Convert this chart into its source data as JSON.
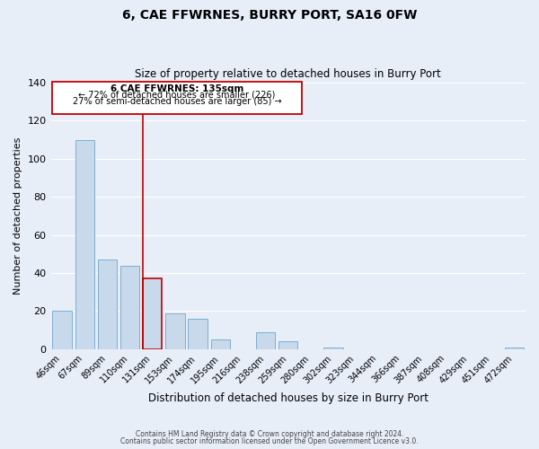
{
  "title": "6, CAE FFWRNES, BURRY PORT, SA16 0FW",
  "subtitle": "Size of property relative to detached houses in Burry Port",
  "xlabel": "Distribution of detached houses by size in Burry Port",
  "ylabel": "Number of detached properties",
  "bar_labels": [
    "46sqm",
    "67sqm",
    "89sqm",
    "110sqm",
    "131sqm",
    "153sqm",
    "174sqm",
    "195sqm",
    "216sqm",
    "238sqm",
    "259sqm",
    "280sqm",
    "302sqm",
    "323sqm",
    "344sqm",
    "366sqm",
    "387sqm",
    "408sqm",
    "429sqm",
    "451sqm",
    "472sqm"
  ],
  "bar_values": [
    20,
    110,
    47,
    44,
    37,
    19,
    16,
    5,
    0,
    9,
    4,
    0,
    1,
    0,
    0,
    0,
    0,
    0,
    0,
    0,
    1
  ],
  "bar_color": "#c9d9ec",
  "bar_edge_color": "#7bafd4",
  "highlight_bar_index": 4,
  "highlight_bar_edge_color": "#c00000",
  "vline_color": "#c00000",
  "annotation_title": "6 CAE FFWRNES: 135sqm",
  "annotation_line1": "← 72% of detached houses are smaller (226)",
  "annotation_line2": "27% of semi-detached houses are larger (85) →",
  "annotation_box_edge_color": "#c00000",
  "ylim": [
    0,
    140
  ],
  "yticks": [
    0,
    20,
    40,
    60,
    80,
    100,
    120,
    140
  ],
  "footer1": "Contains HM Land Registry data © Crown copyright and database right 2024.",
  "footer2": "Contains public sector information licensed under the Open Government Licence v3.0.",
  "background_color": "#e8eef8",
  "plot_background_color": "#e8eef8",
  "grid_color": "#ffffff",
  "figsize": [
    6.0,
    5.0
  ],
  "dpi": 100
}
